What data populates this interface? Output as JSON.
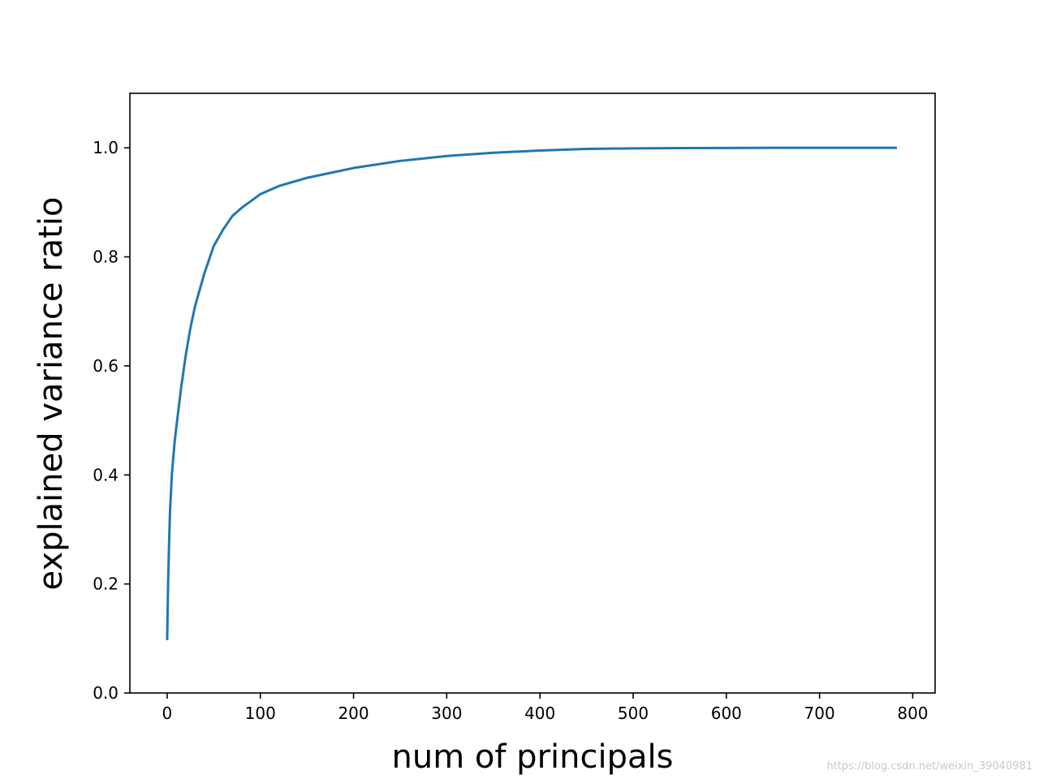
{
  "chart_data": {
    "type": "line",
    "title": "",
    "xlabel": "num of principals",
    "ylabel": "explained variance ratio",
    "xlim": [
      -40,
      824
    ],
    "ylim": [
      0.0,
      1.1
    ],
    "x_ticks": [
      0,
      100,
      200,
      300,
      400,
      500,
      600,
      700,
      800
    ],
    "y_ticks": [
      0.0,
      0.2,
      0.4,
      0.6,
      0.8,
      1.0
    ],
    "x_tick_labels": [
      "0",
      "100",
      "200",
      "300",
      "400",
      "500",
      "600",
      "700",
      "800"
    ],
    "y_tick_labels": [
      "0.0",
      "0.2",
      "0.4",
      "0.6",
      "0.8",
      "1.0"
    ],
    "grid": false,
    "legend": "none",
    "series": [
      {
        "color": "#1f77b4",
        "x": [
          0,
          1,
          2,
          3,
          5,
          8,
          10,
          15,
          20,
          25,
          30,
          40,
          50,
          60,
          70,
          80,
          100,
          120,
          150,
          200,
          250,
          300,
          350,
          400,
          450,
          500,
          550,
          600,
          650,
          700,
          750,
          783
        ],
        "y": [
          0.097,
          0.2,
          0.27,
          0.33,
          0.4,
          0.46,
          0.49,
          0.56,
          0.62,
          0.67,
          0.71,
          0.77,
          0.82,
          0.85,
          0.875,
          0.89,
          0.915,
          0.93,
          0.945,
          0.963,
          0.976,
          0.985,
          0.991,
          0.995,
          0.998,
          0.999,
          0.9995,
          0.9998,
          1.0,
          1.0,
          1.0,
          1.0
        ]
      }
    ]
  },
  "watermark": "https://blog.csdn.net/weixin_39040981"
}
